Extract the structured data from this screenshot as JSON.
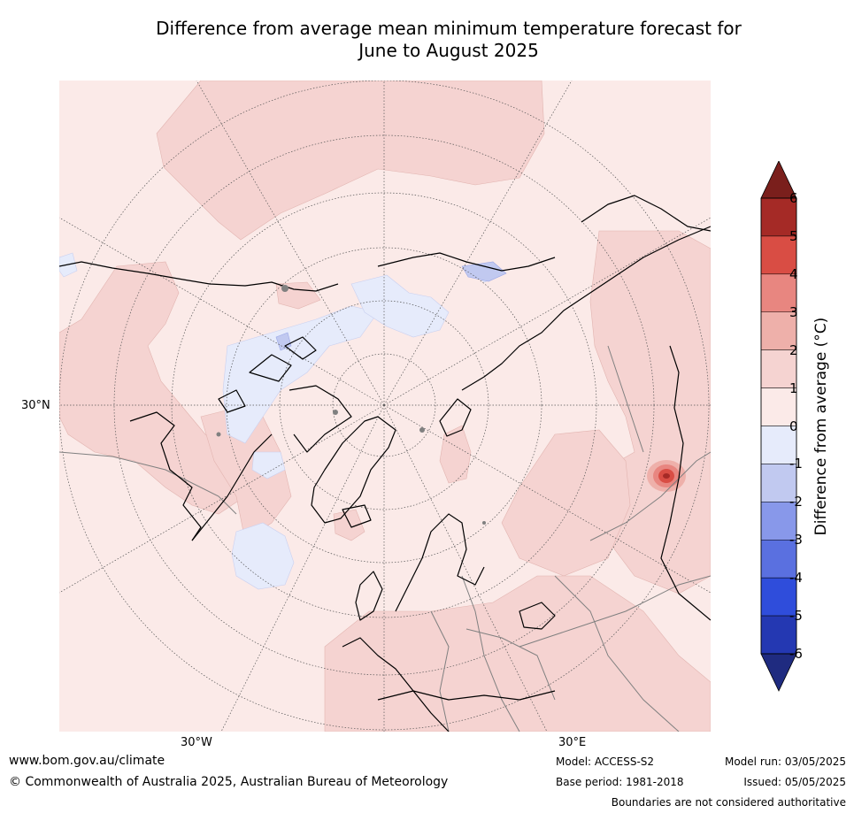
{
  "title_line1": "Difference from average mean minimum temperature forecast for",
  "title_line2": "June to August 2025",
  "map": {
    "lat_label_left": "30°N",
    "lon_label_left": "30°W",
    "lon_label_right": "30°E",
    "colors": {
      "ocean_base": "#fbeae8",
      "warm_1_2": "#f5d3d1",
      "cool_0_1": "#e6ebfb",
      "cool_1_2": "#c1c9f0",
      "coast": "#000000",
      "border": "#808080",
      "grid": "#555555"
    }
  },
  "colorbar": {
    "title": "Difference from average (°C)",
    "ticks": [
      "6",
      "5",
      "4",
      "3",
      "2",
      "1",
      "0",
      "-1",
      "-2",
      "-3",
      "-4",
      "-5",
      "-6"
    ],
    "colors": [
      "#a52a26",
      "#d94d44",
      "#e88680",
      "#eeb0aa",
      "#f5d3d1",
      "#fbeae8",
      "#e6ebfb",
      "#c1c9f0",
      "#8898ea",
      "#5a70e0",
      "#2f4ddb",
      "#2438b2"
    ],
    "over_color": "#7a1f1c",
    "under_color": "#1f2b80"
  },
  "footer": {
    "website": "www.bom.gov.au/climate",
    "copyright": "© Commonwealth of Australia 2025, Australian Bureau of Meteorology",
    "model": "Model: ACCESS-S2",
    "base_period": "Base period: 1981-2018",
    "model_run": "Model run: 03/05/2025",
    "issued": "Issued: 05/05/2025",
    "disclaimer": "Boundaries are not considered authoritative"
  }
}
